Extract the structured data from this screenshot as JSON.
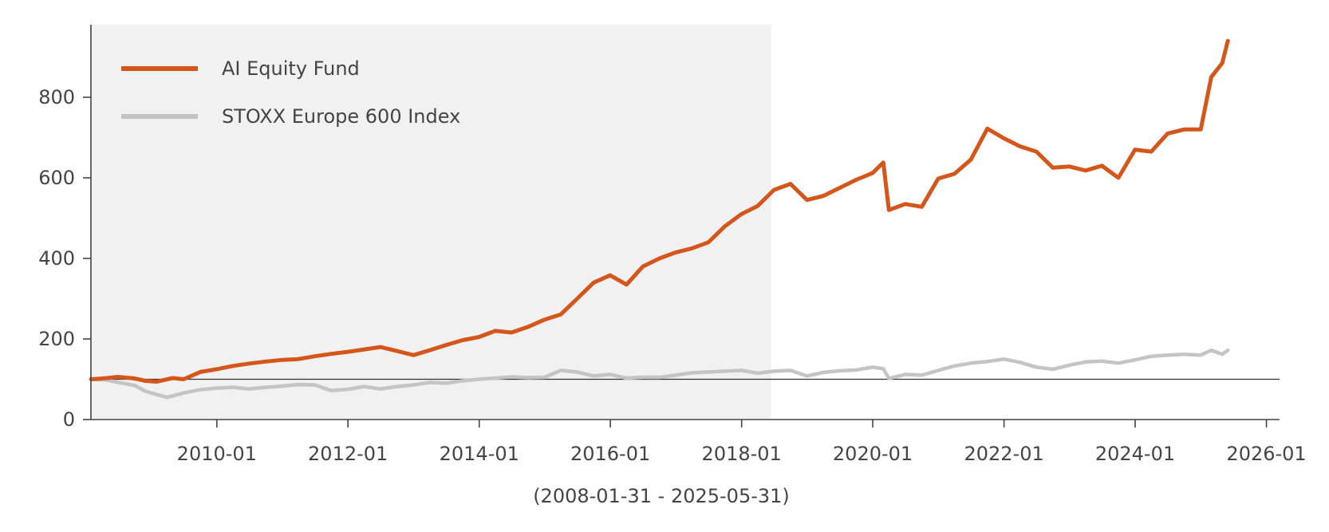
{
  "chart_data": {
    "type": "line",
    "title": "",
    "xlabel": "(2008-01-31 - 2025-05-31)",
    "ylabel": "",
    "xlim": [
      "2008-01-31",
      "2026-03-15"
    ],
    "ylim": [
      0,
      980
    ],
    "y_ticks": [
      0,
      200,
      400,
      600,
      800
    ],
    "y_tick_labels": [
      "0",
      "200",
      "400",
      "600",
      "800"
    ],
    "x_ticks": [
      "2010-01-01",
      "2012-01-01",
      "2014-01-01",
      "2016-01-01",
      "2018-01-01",
      "2020-01-01",
      "2022-01-01",
      "2024-01-01",
      "2026-01-01"
    ],
    "x_tick_labels": [
      "2010-01",
      "2012-01",
      "2014-01",
      "2016-01",
      "2018-01",
      "2020-01",
      "2022-01",
      "2024-01",
      "2026-01"
    ],
    "baseline": 100,
    "shaded_period": {
      "start": "2008-01-31",
      "end": "2018-06-15",
      "color": "#f1f1f1"
    },
    "legend_position": "top-left",
    "series": [
      {
        "name": "AI Equity Fund",
        "color": "#d4561a",
        "points": [
          [
            "2008-01-31",
            100
          ],
          [
            "2008-04-30",
            103
          ],
          [
            "2008-06-30",
            106
          ],
          [
            "2008-09-30",
            102
          ],
          [
            "2008-11-30",
            96
          ],
          [
            "2009-01-31",
            94
          ],
          [
            "2009-04-30",
            103
          ],
          [
            "2009-06-30",
            100
          ],
          [
            "2009-09-30",
            118
          ],
          [
            "2009-12-31",
            125
          ],
          [
            "2010-03-31",
            133
          ],
          [
            "2010-06-30",
            139
          ],
          [
            "2010-09-30",
            144
          ],
          [
            "2010-12-31",
            148
          ],
          [
            "2011-03-31",
            150
          ],
          [
            "2011-06-30",
            157
          ],
          [
            "2011-09-30",
            163
          ],
          [
            "2011-12-31",
            168
          ],
          [
            "2012-03-31",
            174
          ],
          [
            "2012-06-30",
            180
          ],
          [
            "2012-09-30",
            170
          ],
          [
            "2012-12-31",
            160
          ],
          [
            "2013-03-31",
            172
          ],
          [
            "2013-06-30",
            185
          ],
          [
            "2013-09-30",
            197
          ],
          [
            "2013-12-31",
            205
          ],
          [
            "2014-03-31",
            220
          ],
          [
            "2014-06-30",
            216
          ],
          [
            "2014-09-30",
            230
          ],
          [
            "2014-12-31",
            248
          ],
          [
            "2015-03-31",
            261
          ],
          [
            "2015-06-30",
            300
          ],
          [
            "2015-09-30",
            340
          ],
          [
            "2015-12-31",
            358
          ],
          [
            "2016-03-31",
            335
          ],
          [
            "2016-06-30",
            380
          ],
          [
            "2016-09-30",
            400
          ],
          [
            "2016-12-31",
            415
          ],
          [
            "2017-03-31",
            425
          ],
          [
            "2017-06-30",
            440
          ],
          [
            "2017-09-30",
            480
          ],
          [
            "2017-12-31",
            510
          ],
          [
            "2018-03-31",
            530
          ],
          [
            "2018-06-30",
            570
          ],
          [
            "2018-09-30",
            585
          ],
          [
            "2018-12-31",
            545
          ],
          [
            "2019-03-31",
            555
          ],
          [
            "2019-06-30",
            575
          ],
          [
            "2019-09-30",
            595
          ],
          [
            "2019-12-31",
            612
          ],
          [
            "2020-02-29",
            638
          ],
          [
            "2020-03-31",
            520
          ],
          [
            "2020-06-30",
            535
          ],
          [
            "2020-09-30",
            528
          ],
          [
            "2020-12-31",
            598
          ],
          [
            "2021-03-31",
            610
          ],
          [
            "2021-06-30",
            645
          ],
          [
            "2021-09-30",
            722
          ],
          [
            "2021-12-31",
            698
          ],
          [
            "2022-03-31",
            678
          ],
          [
            "2022-06-30",
            665
          ],
          [
            "2022-09-30",
            625
          ],
          [
            "2022-12-31",
            628
          ],
          [
            "2023-03-31",
            618
          ],
          [
            "2023-06-30",
            630
          ],
          [
            "2023-09-30",
            600
          ],
          [
            "2023-12-31",
            670
          ],
          [
            "2024-03-31",
            665
          ],
          [
            "2024-06-30",
            710
          ],
          [
            "2024-09-30",
            720
          ],
          [
            "2024-12-31",
            720
          ],
          [
            "2025-02-28",
            850
          ],
          [
            "2025-04-30",
            885
          ],
          [
            "2025-05-31",
            940
          ]
        ]
      },
      {
        "name": "STOXX Europe 600 Index",
        "color": "#c4c4c4",
        "points": [
          [
            "2008-01-31",
            100
          ],
          [
            "2008-04-30",
            98
          ],
          [
            "2008-06-30",
            92
          ],
          [
            "2008-09-30",
            85
          ],
          [
            "2008-11-30",
            70
          ],
          [
            "2009-01-31",
            62
          ],
          [
            "2009-03-31",
            55
          ],
          [
            "2009-06-30",
            66
          ],
          [
            "2009-09-30",
            74
          ],
          [
            "2009-12-31",
            78
          ],
          [
            "2010-03-31",
            80
          ],
          [
            "2010-06-30",
            76
          ],
          [
            "2010-09-30",
            80
          ],
          [
            "2010-12-31",
            83
          ],
          [
            "2011-03-31",
            87
          ],
          [
            "2011-06-30",
            86
          ],
          [
            "2011-09-30",
            72
          ],
          [
            "2011-12-31",
            75
          ],
          [
            "2012-03-31",
            82
          ],
          [
            "2012-06-30",
            76
          ],
          [
            "2012-09-30",
            82
          ],
          [
            "2012-12-31",
            86
          ],
          [
            "2013-03-31",
            92
          ],
          [
            "2013-06-30",
            90
          ],
          [
            "2013-09-30",
            96
          ],
          [
            "2013-12-31",
            100
          ],
          [
            "2014-03-31",
            103
          ],
          [
            "2014-06-30",
            106
          ],
          [
            "2014-09-30",
            104
          ],
          [
            "2014-12-31",
            105
          ],
          [
            "2015-03-31",
            122
          ],
          [
            "2015-06-30",
            118
          ],
          [
            "2015-09-30",
            108
          ],
          [
            "2015-12-31",
            112
          ],
          [
            "2016-03-31",
            103
          ],
          [
            "2016-06-30",
            105
          ],
          [
            "2016-09-30",
            105
          ],
          [
            "2016-12-31",
            110
          ],
          [
            "2017-03-31",
            116
          ],
          [
            "2017-06-30",
            118
          ],
          [
            "2017-09-30",
            120
          ],
          [
            "2017-12-31",
            122
          ],
          [
            "2018-03-31",
            115
          ],
          [
            "2018-06-30",
            120
          ],
          [
            "2018-09-30",
            122
          ],
          [
            "2018-12-31",
            108
          ],
          [
            "2019-03-31",
            117
          ],
          [
            "2019-06-30",
            121
          ],
          [
            "2019-09-30",
            123
          ],
          [
            "2019-12-31",
            130
          ],
          [
            "2020-02-29",
            126
          ],
          [
            "2020-03-31",
            102
          ],
          [
            "2020-06-30",
            112
          ],
          [
            "2020-09-30",
            110
          ],
          [
            "2020-12-31",
            122
          ],
          [
            "2021-03-31",
            133
          ],
          [
            "2021-06-30",
            140
          ],
          [
            "2021-09-30",
            144
          ],
          [
            "2021-12-31",
            150
          ],
          [
            "2022-03-31",
            142
          ],
          [
            "2022-06-30",
            130
          ],
          [
            "2022-09-30",
            125
          ],
          [
            "2022-12-31",
            135
          ],
          [
            "2023-03-31",
            143
          ],
          [
            "2023-06-30",
            145
          ],
          [
            "2023-09-30",
            140
          ],
          [
            "2023-12-31",
            148
          ],
          [
            "2024-03-31",
            157
          ],
          [
            "2024-06-30",
            160
          ],
          [
            "2024-09-30",
            162
          ],
          [
            "2024-12-31",
            160
          ],
          [
            "2025-02-28",
            172
          ],
          [
            "2025-04-30",
            162
          ],
          [
            "2025-05-31",
            172
          ]
        ]
      }
    ]
  }
}
